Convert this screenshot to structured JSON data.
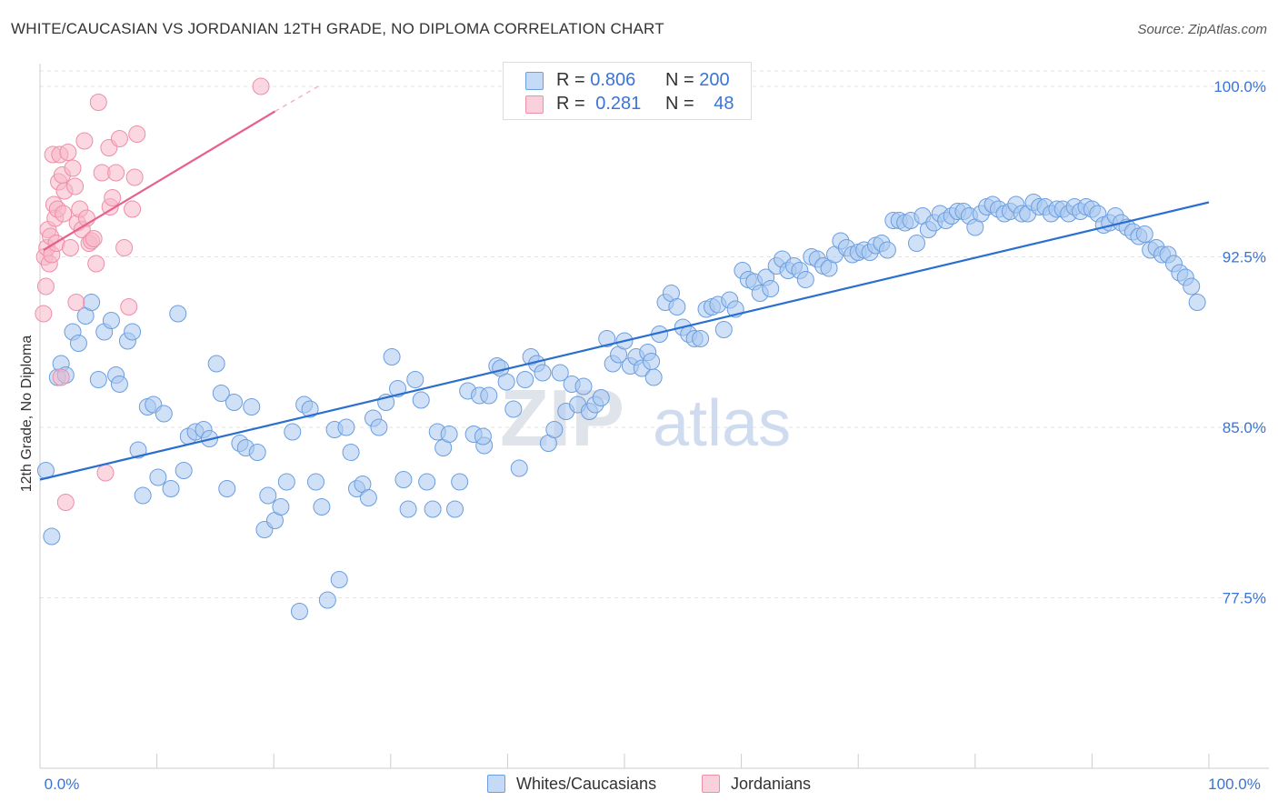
{
  "header": {
    "title": "WHITE/CAUCASIAN VS JORDANIAN 12TH GRADE, NO DIPLOMA CORRELATION CHART",
    "source": "Source: ZipAtlas.com"
  },
  "watermark": {
    "zip": "ZIP",
    "atlas": "atlas"
  },
  "legend": {
    "rows": [
      {
        "r_label": "R = ",
        "r_value": "0.806",
        "n_label": "N = ",
        "n_value": "200",
        "color": "#a9c8f0"
      },
      {
        "r_label": "R = ",
        "r_value": "0.281",
        "n_label": "N = ",
        "n_value": "48",
        "color": "#f7b6c8"
      }
    ]
  },
  "bottom_legend": [
    {
      "label": "Whites/Caucasians",
      "color": "#a9c8f0"
    },
    {
      "label": "Jordanians",
      "color": "#f7b6c8"
    }
  ],
  "chart_data": {
    "type": "scatter",
    "title": "WHITE/CAUCASIAN VS JORDANIAN 12TH GRADE, NO DIPLOMA CORRELATION CHART",
    "xlabel": "",
    "ylabel": "12th Grade, No Diploma",
    "xlim": [
      0,
      100
    ],
    "ylim": [
      70.0,
      101.0
    ],
    "x_tick_labels": [
      "0.0%",
      "100.0%"
    ],
    "y_ticks": [
      77.5,
      85.0,
      92.5,
      100.0
    ],
    "y_tick_labels": [
      "77.5%",
      "85.0%",
      "92.5%",
      "100.0%"
    ],
    "grid": "horizontal dashed",
    "legend_position": "top-center",
    "series": [
      {
        "name": "Whites/Caucasians",
        "color": "#6a9ee0",
        "fill": "#a9c8f0",
        "trend_line": {
          "x": [
            0,
            100
          ],
          "y": [
            82.7,
            94.9
          ],
          "color": "#2a6fcf"
        },
        "points": [
          [
            0.5,
            83.1
          ],
          [
            1.0,
            80.2
          ],
          [
            1.5,
            87.2
          ],
          [
            1.8,
            87.8
          ],
          [
            2.2,
            87.3
          ],
          [
            2.8,
            89.2
          ],
          [
            3.3,
            88.7
          ],
          [
            3.9,
            89.9
          ],
          [
            4.4,
            90.5
          ],
          [
            5.0,
            87.1
          ],
          [
            5.5,
            89.2
          ],
          [
            6.1,
            89.7
          ],
          [
            6.5,
            87.3
          ],
          [
            6.8,
            86.9
          ],
          [
            7.5,
            88.8
          ],
          [
            7.9,
            89.2
          ],
          [
            8.4,
            84.0
          ],
          [
            8.8,
            82.0
          ],
          [
            9.2,
            85.9
          ],
          [
            9.7,
            86.0
          ],
          [
            10.1,
            82.8
          ],
          [
            10.6,
            85.6
          ],
          [
            11.2,
            82.3
          ],
          [
            11.8,
            90.0
          ],
          [
            12.3,
            83.1
          ],
          [
            12.7,
            84.6
          ],
          [
            13.3,
            84.8
          ],
          [
            14.0,
            84.9
          ],
          [
            14.5,
            84.5
          ],
          [
            15.1,
            87.8
          ],
          [
            15.5,
            86.5
          ],
          [
            16.0,
            82.3
          ],
          [
            16.6,
            86.1
          ],
          [
            17.1,
            84.3
          ],
          [
            17.6,
            84.1
          ],
          [
            18.1,
            85.9
          ],
          [
            18.6,
            83.9
          ],
          [
            19.2,
            80.5
          ],
          [
            19.5,
            82.0
          ],
          [
            20.1,
            80.9
          ],
          [
            20.6,
            81.5
          ],
          [
            21.1,
            82.6
          ],
          [
            21.6,
            84.8
          ],
          [
            22.2,
            76.9
          ],
          [
            22.6,
            86.0
          ],
          [
            23.1,
            85.8
          ],
          [
            23.6,
            82.6
          ],
          [
            24.1,
            81.5
          ],
          [
            24.6,
            77.4
          ],
          [
            25.2,
            84.9
          ],
          [
            25.6,
            78.3
          ],
          [
            26.2,
            85.0
          ],
          [
            26.6,
            83.9
          ],
          [
            27.1,
            82.3
          ],
          [
            27.6,
            82.5
          ],
          [
            28.1,
            81.9
          ],
          [
            28.5,
            85.4
          ],
          [
            29.0,
            85.0
          ],
          [
            29.6,
            86.1
          ],
          [
            30.1,
            88.1
          ],
          [
            30.6,
            86.7
          ],
          [
            31.1,
            82.7
          ],
          [
            31.5,
            81.4
          ],
          [
            32.1,
            87.1
          ],
          [
            32.6,
            86.2
          ],
          [
            33.1,
            82.6
          ],
          [
            33.6,
            81.4
          ],
          [
            34.0,
            84.8
          ],
          [
            34.5,
            84.1
          ],
          [
            35.0,
            84.7
          ],
          [
            35.5,
            81.4
          ],
          [
            35.9,
            82.6
          ],
          [
            36.6,
            86.6
          ],
          [
            37.1,
            84.7
          ],
          [
            37.6,
            86.4
          ],
          [
            38.0,
            84.2
          ],
          [
            38.4,
            86.4
          ],
          [
            39.1,
            87.7
          ],
          [
            39.4,
            87.6
          ],
          [
            39.9,
            87.0
          ],
          [
            40.5,
            85.8
          ],
          [
            41.0,
            83.2
          ],
          [
            41.5,
            87.1
          ],
          [
            42.0,
            88.1
          ],
          [
            42.5,
            87.8
          ],
          [
            43.0,
            87.4
          ],
          [
            43.5,
            84.3
          ],
          [
            44.0,
            84.9
          ],
          [
            44.5,
            87.4
          ],
          [
            45.0,
            85.7
          ],
          [
            45.5,
            86.9
          ],
          [
            46.0,
            86.0
          ],
          [
            46.5,
            86.8
          ],
          [
            47.0,
            85.7
          ],
          [
            47.5,
            86.0
          ],
          [
            48.0,
            86.3
          ],
          [
            48.5,
            88.9
          ],
          [
            49.0,
            87.8
          ],
          [
            49.5,
            88.2
          ],
          [
            50.0,
            88.8
          ],
          [
            50.5,
            87.7
          ],
          [
            51.0,
            88.1
          ],
          [
            51.5,
            87.6
          ],
          [
            52.0,
            88.3
          ],
          [
            52.5,
            87.2
          ],
          [
            53.0,
            89.1
          ],
          [
            53.5,
            90.5
          ],
          [
            54.0,
            90.9
          ],
          [
            54.5,
            90.3
          ],
          [
            55.0,
            89.4
          ],
          [
            55.5,
            89.1
          ],
          [
            56.0,
            88.9
          ],
          [
            56.5,
            88.9
          ],
          [
            57.0,
            90.2
          ],
          [
            57.5,
            90.3
          ],
          [
            58.0,
            90.4
          ],
          [
            58.5,
            89.3
          ],
          [
            59.0,
            90.6
          ],
          [
            59.5,
            90.2
          ],
          [
            60.1,
            91.9
          ],
          [
            60.6,
            91.5
          ],
          [
            61.1,
            91.4
          ],
          [
            61.6,
            90.9
          ],
          [
            62.1,
            91.6
          ],
          [
            62.5,
            91.1
          ],
          [
            63.0,
            92.1
          ],
          [
            63.5,
            92.4
          ],
          [
            64.0,
            91.9
          ],
          [
            64.5,
            92.1
          ],
          [
            65.0,
            91.9
          ],
          [
            65.5,
            91.5
          ],
          [
            66.0,
            92.5
          ],
          [
            66.5,
            92.4
          ],
          [
            67.0,
            92.1
          ],
          [
            67.5,
            92.0
          ],
          [
            68.0,
            92.6
          ],
          [
            68.5,
            93.2
          ],
          [
            69.0,
            92.9
          ],
          [
            69.5,
            92.6
          ],
          [
            70.0,
            92.7
          ],
          [
            70.5,
            92.8
          ],
          [
            71.0,
            92.7
          ],
          [
            71.5,
            93.0
          ],
          [
            72.0,
            93.1
          ],
          [
            72.5,
            92.8
          ],
          [
            73.0,
            94.1
          ],
          [
            73.5,
            94.1
          ],
          [
            74.0,
            94.0
          ],
          [
            74.5,
            94.1
          ],
          [
            75.0,
            93.1
          ],
          [
            75.5,
            94.3
          ],
          [
            76.0,
            93.7
          ],
          [
            76.5,
            94.0
          ],
          [
            77.0,
            94.4
          ],
          [
            77.5,
            94.1
          ],
          [
            78.0,
            94.3
          ],
          [
            78.5,
            94.5
          ],
          [
            79.0,
            94.5
          ],
          [
            79.5,
            94.3
          ],
          [
            80.0,
            93.8
          ],
          [
            80.5,
            94.4
          ],
          [
            81.0,
            94.7
          ],
          [
            81.5,
            94.8
          ],
          [
            82.0,
            94.6
          ],
          [
            82.5,
            94.4
          ],
          [
            83.0,
            94.5
          ],
          [
            83.5,
            94.8
          ],
          [
            84.0,
            94.4
          ],
          [
            84.5,
            94.4
          ],
          [
            85.0,
            94.9
          ],
          [
            85.5,
            94.7
          ],
          [
            86.0,
            94.7
          ],
          [
            86.5,
            94.4
          ],
          [
            87.0,
            94.6
          ],
          [
            87.5,
            94.6
          ],
          [
            88.0,
            94.4
          ],
          [
            88.5,
            94.7
          ],
          [
            89.0,
            94.5
          ],
          [
            89.5,
            94.7
          ],
          [
            90.0,
            94.6
          ],
          [
            90.5,
            94.4
          ],
          [
            91.0,
            93.9
          ],
          [
            91.5,
            94.0
          ],
          [
            92.0,
            94.3
          ],
          [
            92.5,
            94.0
          ],
          [
            93.0,
            93.8
          ],
          [
            93.5,
            93.6
          ],
          [
            94.0,
            93.4
          ],
          [
            94.5,
            93.5
          ],
          [
            95.0,
            92.8
          ],
          [
            95.5,
            92.9
          ],
          [
            96.0,
            92.6
          ],
          [
            96.5,
            92.6
          ],
          [
            97.0,
            92.2
          ],
          [
            97.5,
            91.8
          ],
          [
            98.0,
            91.6
          ],
          [
            98.5,
            91.2
          ],
          [
            99.0,
            90.5
          ],
          [
            52.3,
            87.9
          ],
          [
            37.9,
            84.6
          ]
        ]
      },
      {
        "name": "Jordanians",
        "color": "#ee8ea8",
        "fill": "#f7b6c8",
        "trend_line": {
          "x": [
            0.3,
            20.1
          ],
          "y": [
            92.8,
            98.9
          ],
          "color": "#e6608a",
          "dashed_extension_to": [
            23.8,
            100.0
          ]
        },
        "points": [
          [
            0.3,
            90.0
          ],
          [
            0.4,
            92.5
          ],
          [
            0.5,
            91.2
          ],
          [
            0.6,
            92.9
          ],
          [
            0.7,
            93.7
          ],
          [
            0.8,
            92.2
          ],
          [
            0.9,
            93.4
          ],
          [
            1.0,
            92.6
          ],
          [
            1.1,
            97.0
          ],
          [
            1.2,
            94.8
          ],
          [
            1.3,
            94.2
          ],
          [
            1.4,
            93.1
          ],
          [
            1.5,
            94.6
          ],
          [
            1.6,
            95.8
          ],
          [
            1.7,
            97.0
          ],
          [
            1.8,
            87.2
          ],
          [
            1.9,
            96.1
          ],
          [
            2.0,
            94.4
          ],
          [
            2.1,
            95.4
          ],
          [
            2.2,
            81.7
          ],
          [
            2.4,
            97.1
          ],
          [
            2.6,
            92.9
          ],
          [
            2.8,
            96.4
          ],
          [
            3.0,
            95.6
          ],
          [
            3.1,
            90.5
          ],
          [
            3.2,
            94.0
          ],
          [
            3.4,
            94.6
          ],
          [
            3.6,
            93.7
          ],
          [
            3.8,
            97.6
          ],
          [
            4.0,
            94.2
          ],
          [
            4.2,
            93.1
          ],
          [
            4.4,
            93.2
          ],
          [
            4.6,
            93.3
          ],
          [
            4.8,
            92.2
          ],
          [
            5.0,
            99.3
          ],
          [
            5.3,
            96.2
          ],
          [
            5.6,
            83.0
          ],
          [
            5.9,
            97.3
          ],
          [
            6.0,
            94.7
          ],
          [
            6.2,
            95.1
          ],
          [
            6.5,
            96.2
          ],
          [
            6.8,
            97.7
          ],
          [
            7.2,
            92.9
          ],
          [
            7.6,
            90.3
          ],
          [
            7.9,
            94.6
          ],
          [
            8.1,
            96.0
          ],
          [
            8.3,
            97.9
          ],
          [
            18.9,
            100.0
          ]
        ]
      }
    ]
  }
}
